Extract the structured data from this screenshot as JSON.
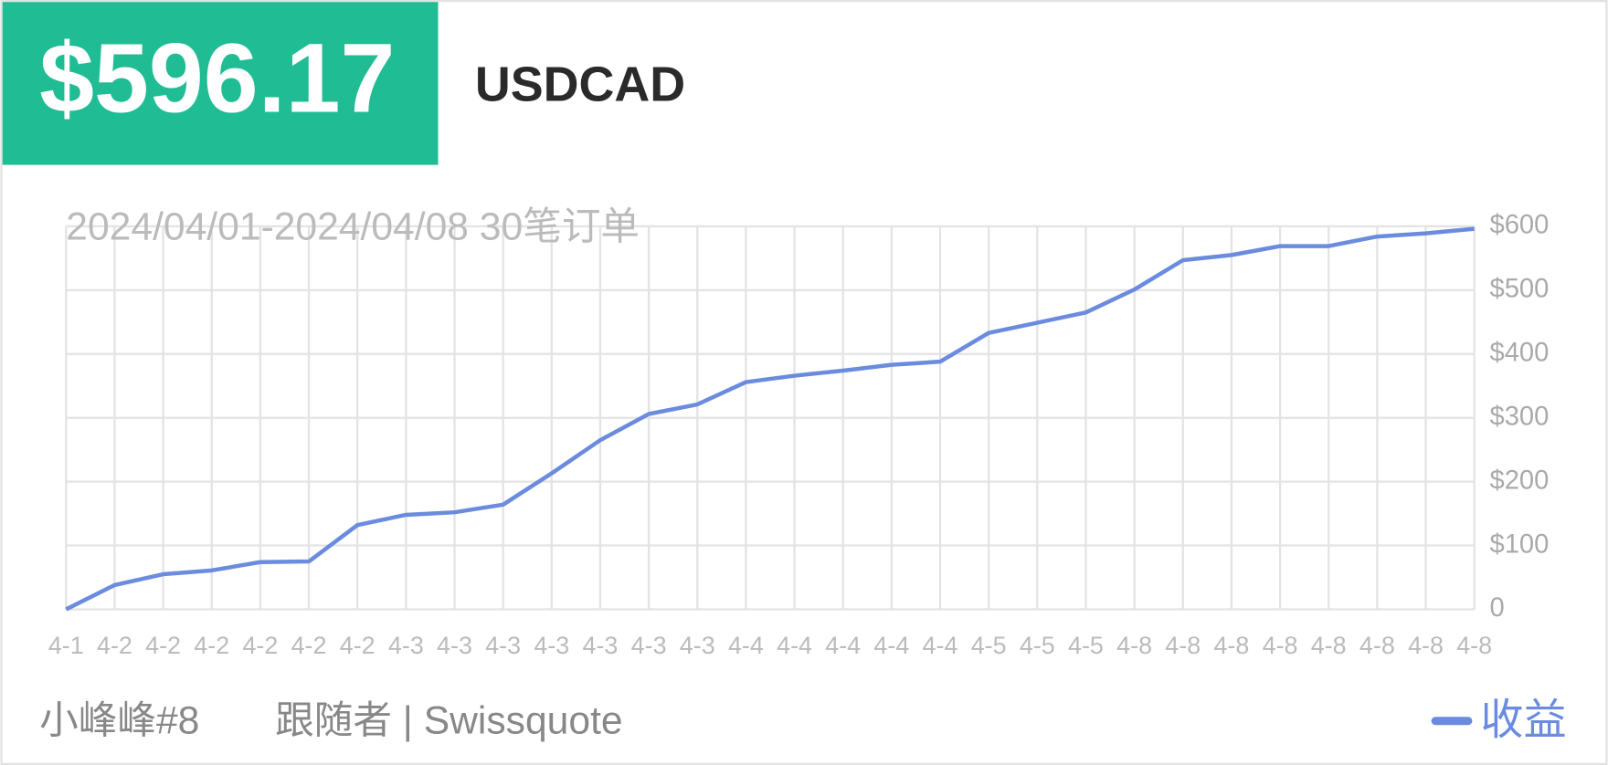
{
  "header": {
    "amount": "$596.17",
    "symbol": "USDCAD"
  },
  "footer": {
    "name": "小峰峰#8",
    "role": "跟随者 | Swissquote"
  },
  "chart_data": {
    "type": "line",
    "subtitle": "2024/04/01-2024/04/08 30笔订单",
    "categories": [
      "4-1",
      "4-2",
      "4-2",
      "4-2",
      "4-2",
      "4-2",
      "4-2",
      "4-3",
      "4-3",
      "4-3",
      "4-3",
      "4-3",
      "4-3",
      "4-3",
      "4-4",
      "4-4",
      "4-4",
      "4-4",
      "4-4",
      "4-5",
      "4-5",
      "4-5",
      "4-8",
      "4-8",
      "4-8",
      "4-8",
      "4-8",
      "4-8",
      "4-8",
      "4-8"
    ],
    "series": [
      {
        "name": "收益",
        "color": "#6b8bdf",
        "values": [
          0,
          38,
          55,
          61,
          74,
          75,
          132,
          148,
          152,
          164,
          213,
          265,
          306,
          321,
          356,
          366,
          374,
          383,
          388,
          433,
          449,
          465,
          501,
          547,
          555,
          569,
          569,
          584,
          589,
          596.17
        ]
      }
    ],
    "ylim": [
      0,
      600
    ],
    "yticks": [
      0,
      {
        "value": 100,
        "label": "$100"
      },
      {
        "value": 200,
        "label": "$200"
      },
      {
        "value": 300,
        "label": "$300"
      },
      {
        "value": 400,
        "label": "$400"
      },
      {
        "value": 500,
        "label": "$500"
      },
      {
        "value": 600,
        "label": "$600"
      }
    ],
    "grid": true,
    "legend": "bottom-right"
  }
}
